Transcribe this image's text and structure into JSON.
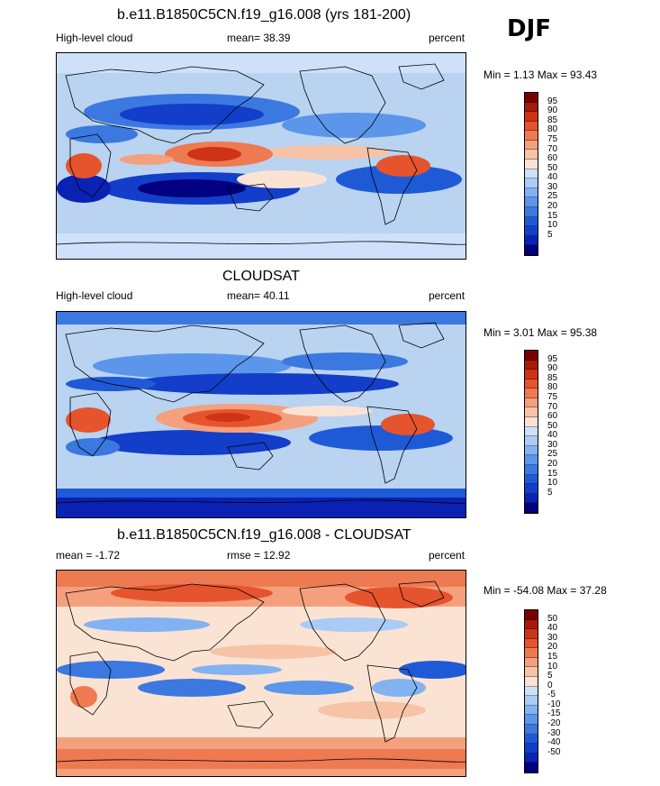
{
  "season": "DJF",
  "colors": {
    "ocean_light": "#b9d3f1",
    "coast": "#000000",
    "scale_abs": [
      "#000080",
      "#0a22b3",
      "#123ec9",
      "#1f5ad6",
      "#3b78e0",
      "#5b96ea",
      "#82b2f2",
      "#aacbf6",
      "#cfe1fa",
      "#fbe3d4",
      "#f7c3a6",
      "#f4a07c",
      "#ee7a52",
      "#e5542d",
      "#cf3316",
      "#a81a08",
      "#7a0000"
    ],
    "scale_diff": [
      "#000080",
      "#0a22b3",
      "#123ec9",
      "#1f5ad6",
      "#3b78e0",
      "#5b96ea",
      "#82b2f2",
      "#aacbf6",
      "#cfe1fa",
      "#fbe3d4",
      "#f7c3a6",
      "#f4a07c",
      "#ee7a52",
      "#e5542d",
      "#cf3316",
      "#a81a08",
      "#7a0000"
    ]
  },
  "panels": [
    {
      "title": "b.e11.B1850C5CN.f19_g16.008 (yrs 181-200)",
      "left_label": "High-level cloud",
      "center_label": "mean=  38.39",
      "right_label": "percent",
      "minmax": "Min =   1.13 Max =  93.43",
      "levels": [
        "95",
        "90",
        "85",
        "80",
        "75",
        "70",
        "60",
        "50",
        "40",
        "30",
        "25",
        "20",
        "15",
        "10",
        "5"
      ]
    },
    {
      "title": "CLOUDSAT",
      "left_label": "High-level cloud",
      "center_label": "mean=  40.11",
      "right_label": "percent",
      "minmax": "Min =   3.01 Max =  95.38",
      "levels": [
        "95",
        "90",
        "85",
        "80",
        "75",
        "70",
        "60",
        "50",
        "40",
        "30",
        "25",
        "20",
        "15",
        "10",
        "5"
      ]
    },
    {
      "title": "b.e11.B1850C5CN.f19_g16.008 - CLOUDSAT",
      "left_label": "mean =  -1.72",
      "center_label": "rmse =  12.92",
      "right_label": "percent",
      "minmax": "Min = -54.08 Max =  37.28",
      "levels": [
        "50",
        "40",
        "30",
        "20",
        "15",
        "10",
        "5",
        "0",
        "-5",
        "-10",
        "-15",
        "-20",
        "-30",
        "-40",
        "-50"
      ]
    }
  ]
}
